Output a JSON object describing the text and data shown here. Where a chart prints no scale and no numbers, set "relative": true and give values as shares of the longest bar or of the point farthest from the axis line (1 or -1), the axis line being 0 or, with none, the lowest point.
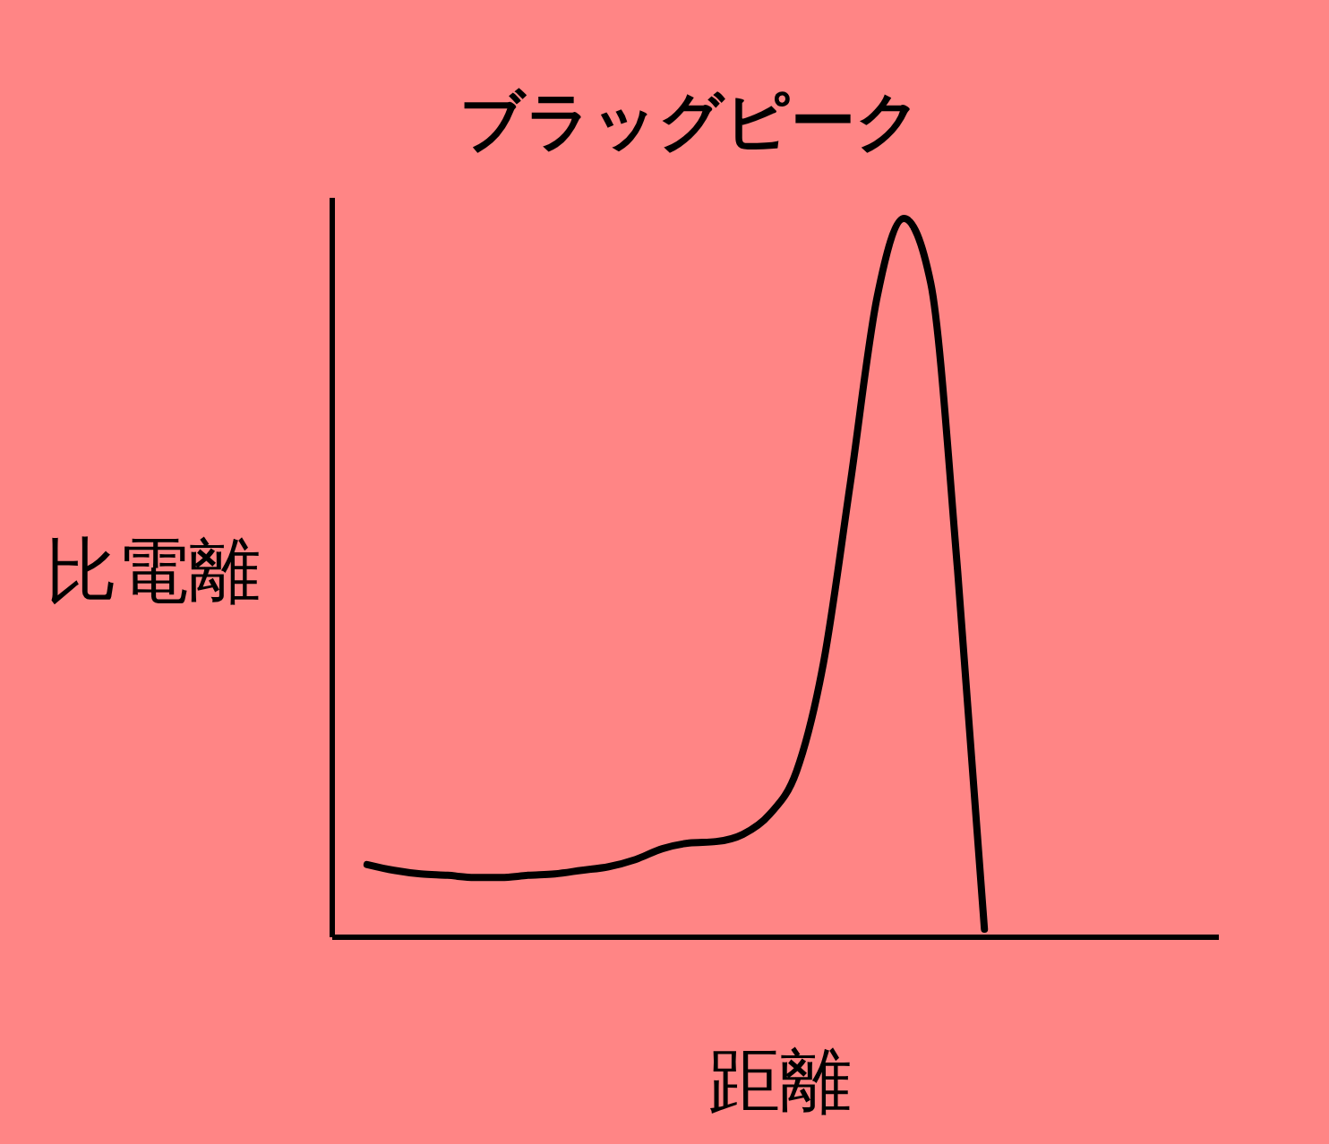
{
  "chart_data": {
    "type": "line",
    "title": "ブラッグピーク",
    "xlabel": "距離",
    "ylabel": "比電離",
    "relative": true,
    "categories": [
      null,
      null,
      null,
      null,
      null,
      null,
      null,
      null,
      null,
      null,
      null,
      null,
      null,
      null,
      null,
      null,
      null,
      null,
      null,
      null,
      null,
      null,
      null,
      null
    ],
    "series": [
      {
        "color": "#000000",
        "values": [
          0.1,
          0.092,
          0.087,
          0.085,
          0.082,
          0.082,
          0.085,
          0.087,
          0.092,
          0.097,
          0.107,
          0.122,
          0.13,
          0.132,
          0.142,
          0.17,
          0.23,
          0.38,
          0.63,
          0.89,
          1.0,
          0.91,
          0.51,
          0.01
        ]
      }
    ],
    "grid": false,
    "marker": "none",
    "line_style": "solid"
  }
}
